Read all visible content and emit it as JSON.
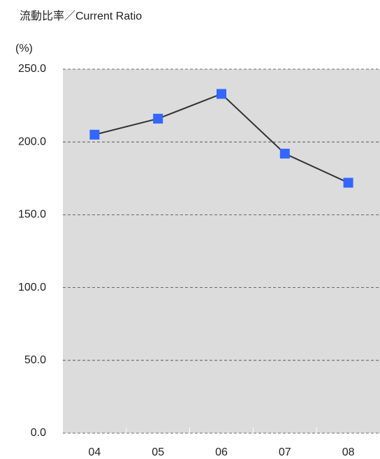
{
  "chart_data": {
    "type": "line",
    "title": "流動比率／Current Ratio",
    "y_label": "(%)",
    "categories": [
      "04",
      "05",
      "06",
      "07",
      "08"
    ],
    "series": [
      {
        "name": "Current Ratio",
        "color": "#3366ff",
        "values": [
          205,
          216,
          233,
          192,
          172
        ]
      }
    ],
    "ylim": [
      0,
      250
    ],
    "yticks": [
      {
        "value": 0,
        "label": "0.0"
      },
      {
        "value": 50,
        "label": "50.0"
      },
      {
        "value": 100,
        "label": "100.0"
      },
      {
        "value": 150,
        "label": "150.0"
      },
      {
        "value": 200,
        "label": "200.0"
      },
      {
        "value": 250,
        "label": "250.0"
      }
    ],
    "grid": true
  }
}
